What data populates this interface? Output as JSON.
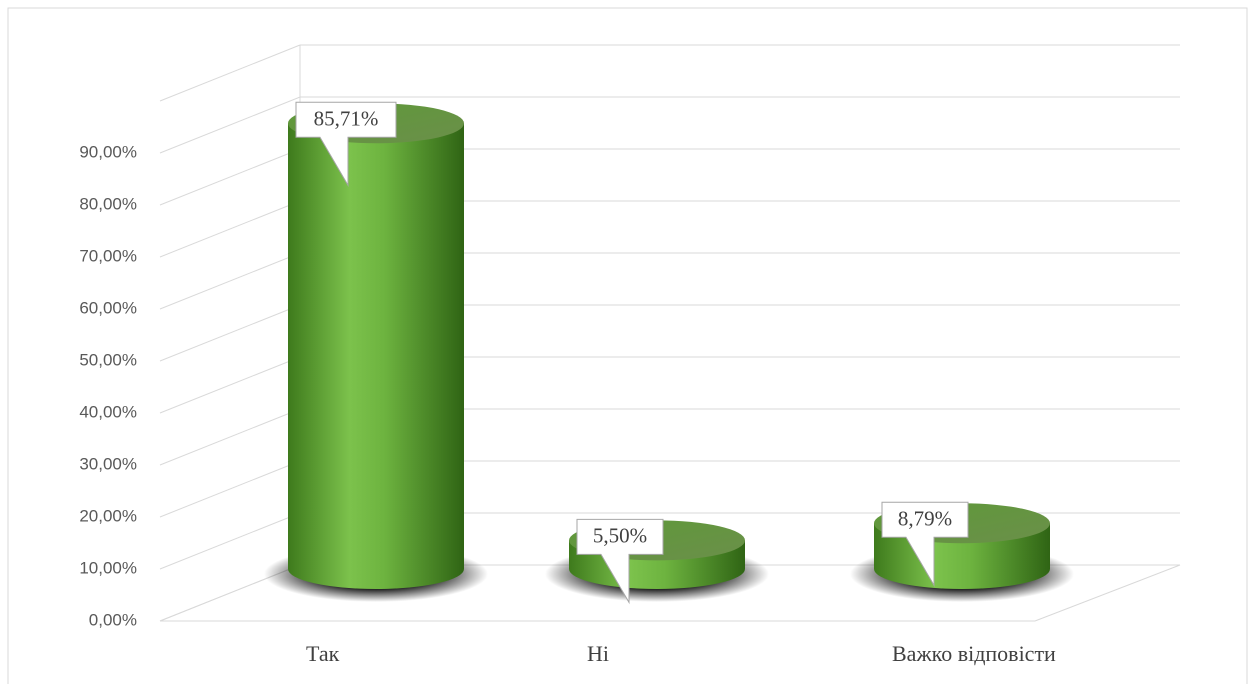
{
  "chart_data": {
    "type": "bar3d",
    "categories": [
      "Так",
      "Ні",
      "Важко відповісти"
    ],
    "values": [
      85.71,
      5.5,
      8.79
    ],
    "value_labels": [
      "85,71%",
      "5,50%",
      "8,79%"
    ],
    "color": "#5fa83a",
    "ylim": [
      0,
      100
    ],
    "yticks": [
      {
        "value": 0,
        "label": "0,00%"
      },
      {
        "value": 10,
        "label": "10,00%"
      },
      {
        "value": 20,
        "label": "20,00%"
      },
      {
        "value": 30,
        "label": "30,00%"
      },
      {
        "value": 40,
        "label": "40,00%"
      },
      {
        "value": 50,
        "label": "50,00%"
      },
      {
        "value": 60,
        "label": "60,00%"
      },
      {
        "value": 70,
        "label": "70,00%"
      },
      {
        "value": 80,
        "label": "80,00%"
      },
      {
        "value": 90,
        "label": "90,00%"
      }
    ],
    "grid": true
  }
}
